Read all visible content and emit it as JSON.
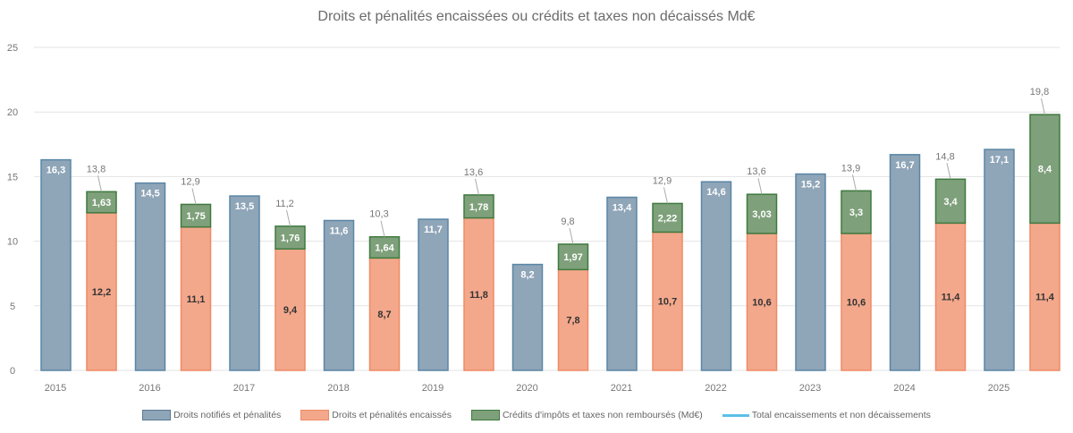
{
  "chart_data": {
    "type": "bar",
    "title": "Droits et pénalités encaissées ou crédits et taxes non décaissés Md€",
    "categories": [
      "2015",
      "2016",
      "2017",
      "2018",
      "2019",
      "2020",
      "2021",
      "2022",
      "2023",
      "2024",
      "2025"
    ],
    "ylim": [
      0,
      25
    ],
    "yticks": [
      "0",
      "5",
      "10",
      "15",
      "20",
      "25"
    ],
    "grid": true,
    "legend_position": "bottom",
    "series": [
      {
        "name": "Droits notifiés et pénalités",
        "color": "#8fa5b8",
        "stack": "a",
        "values": [
          16.3,
          14.5,
          13.5,
          11.6,
          11.7,
          8.2,
          13.4,
          14.6,
          15.2,
          16.7,
          17.1
        ],
        "labels": [
          "16,3",
          "14,5",
          "13,5",
          "11,6",
          "11,7",
          "8,2",
          "13,4",
          "14,6",
          "15,2",
          "16,7",
          "17,1"
        ]
      },
      {
        "name": "Droits et pénalités encaissés",
        "color": "#f3a88c",
        "stack": "b",
        "values": [
          12.2,
          11.1,
          9.4,
          8.7,
          11.8,
          7.8,
          10.7,
          10.6,
          10.6,
          11.4,
          11.4
        ],
        "labels": [
          "12,2",
          "11,1",
          "9,4",
          "8,7",
          "11,8",
          "7,8",
          "10,7",
          "10,6",
          "10,6",
          "11,4",
          "11,4"
        ]
      },
      {
        "name": "Crédits d'impôts et taxes non remboursés (Md€)",
        "color": "#7ea07a",
        "stack": "b",
        "values": [
          1.63,
          1.75,
          1.76,
          1.64,
          1.78,
          1.97,
          2.22,
          3.03,
          3.3,
          3.4,
          8.4
        ],
        "labels": [
          "1,63",
          "1,75",
          "1,76",
          "1,64",
          "1,78",
          "1,97",
          "2,22",
          "3,03",
          "3,3",
          "3,4",
          "8,4"
        ]
      },
      {
        "name": "Total encaissements et non décaissements",
        "color": "#5bc0e8",
        "type": "line-label",
        "values": [
          13.8,
          12.9,
          11.2,
          10.3,
          13.6,
          9.8,
          12.9,
          13.6,
          13.9,
          14.8,
          19.8
        ],
        "labels": [
          "13,8",
          "12,9",
          "11,2",
          "10,3",
          "13,6",
          "9,8",
          "12,9",
          "13,6",
          "13,9",
          "14,8",
          "19,8"
        ]
      }
    ]
  }
}
